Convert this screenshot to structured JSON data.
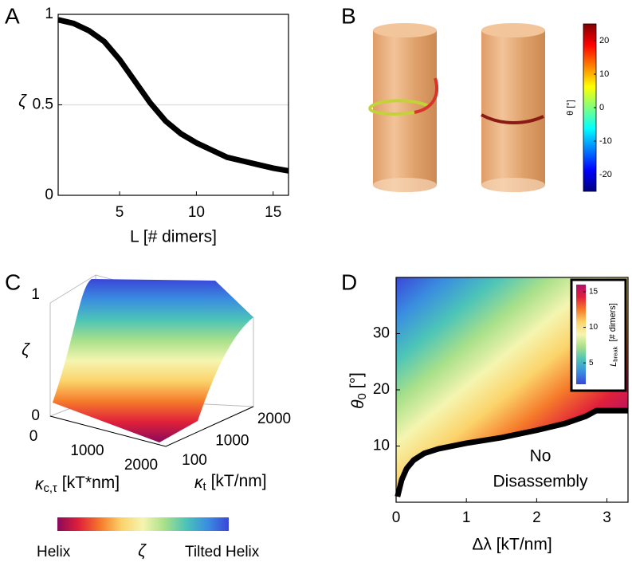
{
  "chart_data": [
    {
      "type": "line",
      "label": "A",
      "ylabel": "ζ",
      "xlabel": "L [# dimers]",
      "x": [
        1,
        2,
        3,
        4,
        5,
        6,
        7,
        8,
        9,
        10,
        11,
        12,
        13,
        14,
        15,
        16
      ],
      "values": [
        0.97,
        0.95,
        0.91,
        0.85,
        0.75,
        0.63,
        0.51,
        0.41,
        0.34,
        0.29,
        0.25,
        0.21,
        0.19,
        0.17,
        0.15,
        0.135
      ],
      "color": "#000000",
      "xlim": [
        1,
        16
      ],
      "ylim": [
        0,
        1
      ],
      "xticks": [
        5,
        10,
        15
      ],
      "yticks": [
        0,
        0.5,
        1
      ],
      "grid": "y"
    },
    {
      "type": "illustration",
      "label": "B",
      "colorbar": {
        "label": "θ [°]",
        "lim": [
          -25,
          25
        ],
        "ticks": [
          -20,
          -10,
          0,
          10,
          20
        ],
        "colormap": [
          "#00007f",
          "#0000ff",
          "#007fff",
          "#00ffff",
          "#7fff7f",
          "#ffff00",
          "#ff7f00",
          "#ff0000",
          "#7f0000"
        ]
      }
    },
    {
      "type": "surface",
      "label": "C",
      "zlabel": "ζ",
      "xlabel": {
        "symbol": "κ",
        "subscript": "c,τ",
        "unit": "[kT*nm]"
      },
      "ylabel": {
        "symbol": "κ",
        "subscript": "t",
        "unit": "[kT/nm]"
      },
      "zticks": [
        0,
        1
      ],
      "xticks": [
        0,
        1000,
        2000
      ],
      "yticks": [
        100,
        1000,
        2000
      ],
      "colormap": [
        "#8a0a5a",
        "#e0203a",
        "#f57a2a",
        "#fbd36a",
        "#f5f5b0",
        "#a8e08a",
        "#4cc4b8",
        "#3a8ee0",
        "#3a46d8"
      ],
      "colorbar": {
        "label": "ζ",
        "low": "Helix",
        "high": "Tilted Helix"
      }
    },
    {
      "type": "heatmap",
      "label": "D",
      "xlabel": "Δλ [kT/nm]",
      "ylabel": {
        "symbol": "θ",
        "subscript": "0",
        "unit": "[°]"
      },
      "xlim": [
        0,
        3.3
      ],
      "ylim": [
        0,
        40
      ],
      "xticks": [
        0,
        1,
        2,
        3
      ],
      "yticks": [
        10,
        20,
        30
      ],
      "annotation": [
        "No",
        "Disassembly"
      ],
      "boundary": {
        "x": [
          0.02,
          0.08,
          0.15,
          0.25,
          0.4,
          0.6,
          1,
          1.5,
          2,
          2.4,
          2.7,
          2.85,
          3,
          3.3
        ],
        "y": [
          1,
          4,
          6,
          7.5,
          8.7,
          9.5,
          10.5,
          11.5,
          12.8,
          14,
          15.3,
          16.3,
          16.3,
          16.3
        ]
      },
      "colormap": [
        "#3a46d8",
        "#3a8ee0",
        "#4cc4b8",
        "#a8e08a",
        "#f5f5b0",
        "#fbd36a",
        "#f57a2a",
        "#e0203a",
        "#b0106a"
      ],
      "colorbar": {
        "label": {
          "symbol": "L",
          "subscript": "break",
          "unit": "[# dimers]"
        },
        "lim": [
          2,
          16
        ],
        "ticks": [
          5,
          10,
          15
        ]
      }
    }
  ]
}
